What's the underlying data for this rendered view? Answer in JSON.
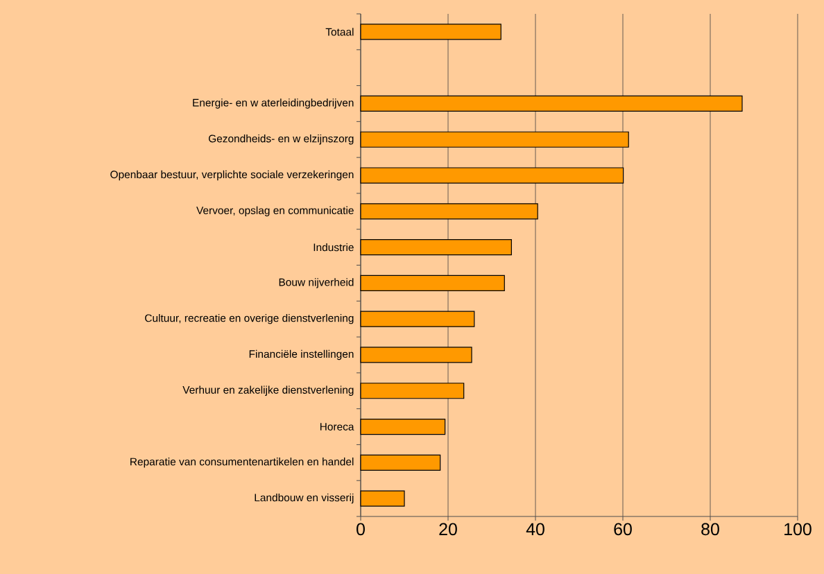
{
  "chart_data": {
    "type": "bar",
    "orientation": "horizontal",
    "categories": [
      "Totaal",
      null,
      "Energie- en w aterleidingbedrijven",
      "Gezondheids- en w elzijnszorg",
      "Openbaar bestuur, verplichte sociale verzekeringen",
      "Vervoer, opslag en communicatie",
      "Industrie",
      "Bouw nijverheid",
      "Cultuur, recreatie en overige dienstverlening",
      "Financiële instellingen",
      "Verhuur en zakelijke dienstverlening",
      "Horeca",
      "Reparatie van consumentenartikelen en handel",
      "Landbouw en visserij"
    ],
    "values": [
      32.1,
      null,
      87.3,
      61.3,
      60.1,
      40.5,
      34.5,
      32.9,
      26.0,
      25.4,
      23.6,
      19.3,
      18.2,
      10.0
    ],
    "color": "#ff9900",
    "xlim": [
      0,
      100
    ],
    "xticks": [
      0,
      20,
      40,
      60,
      80,
      100
    ],
    "grid": "x"
  }
}
